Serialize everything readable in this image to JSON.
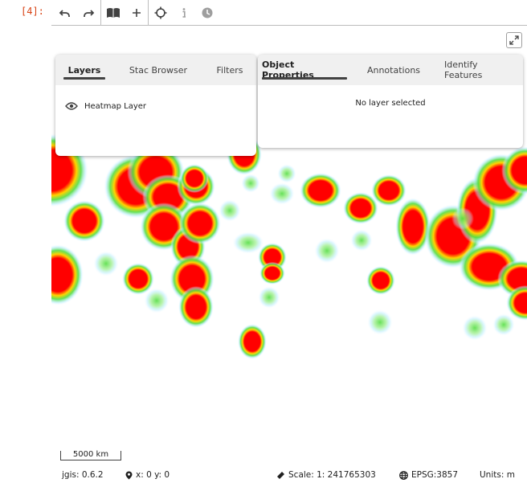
{
  "notebook": {
    "prompt": "[4]:"
  },
  "toolbar": {
    "buttons": [
      {
        "name": "undo-icon"
      },
      {
        "name": "redo-icon"
      },
      {
        "name": "open-layer-browser-icon"
      },
      {
        "name": "add-layer-icon"
      },
      {
        "name": "center-map-icon"
      },
      {
        "name": "info-icon"
      },
      {
        "name": "history-icon"
      }
    ]
  },
  "left_panel": {
    "tabs": [
      {
        "label": "Layers",
        "active": true
      },
      {
        "label": "Stac Browser",
        "active": false
      },
      {
        "label": "Filters",
        "active": false
      }
    ],
    "layers": [
      {
        "name": "Heatmap Layer",
        "visible": true,
        "icon": "eye-icon"
      }
    ]
  },
  "right_panel": {
    "tabs": [
      {
        "label": "Object Properties",
        "active": true
      },
      {
        "label": "Annotations",
        "active": false
      },
      {
        "label": "Identify Features",
        "active": false
      }
    ],
    "empty_message": "No layer selected"
  },
  "map": {
    "scale_bar_label": "5000 km",
    "heatmap_colors": {
      "hot": "#ff0000",
      "warm": "#ffd400",
      "mid": "#55dd44",
      "cool": "#b3ecff"
    }
  },
  "status": {
    "version": "jgis: 0.6.2",
    "coords": "x: 0 y: 0",
    "scale": "Scale: 1: 241765303",
    "projection": "EPSG:3857",
    "units": "Units: m"
  },
  "colors": {
    "prompt": "#d84315",
    "border": "#bdbdbd",
    "tab_bg": "#f0f0f0"
  }
}
